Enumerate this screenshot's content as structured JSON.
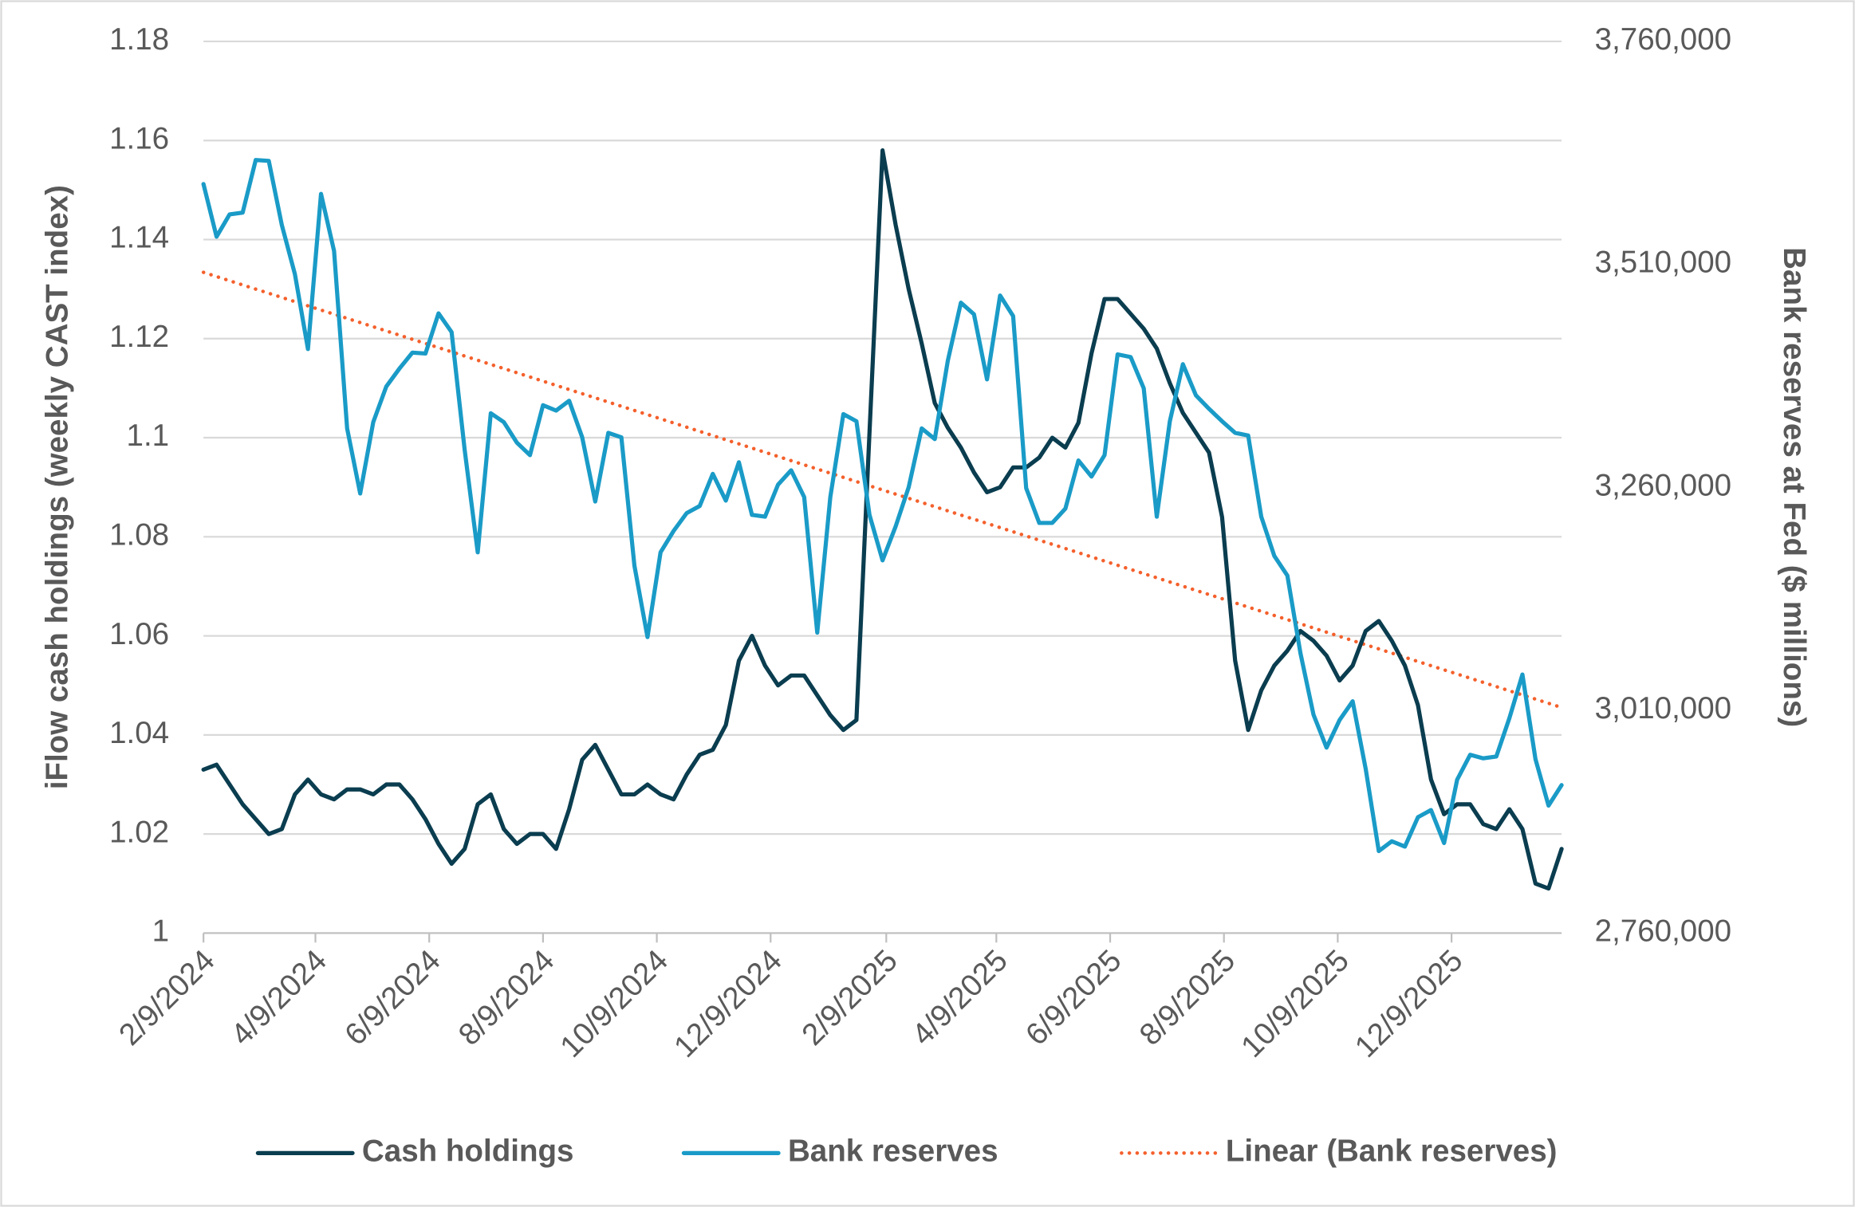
{
  "chart_data": {
    "type": "line",
    "y_label": "iFlow cash holdings (weekly CAST index)",
    "y2_label": "Bank reserves at Fed ($ millions)",
    "x": [
      "2024-02-09",
      "2024-02-16",
      "2024-02-23",
      "2024-03-01",
      "2024-03-08",
      "2024-03-15",
      "2024-03-22",
      "2024-03-29",
      "2024-04-05",
      "2024-04-12",
      "2024-04-19",
      "2024-04-26",
      "2024-05-03",
      "2024-05-10",
      "2024-05-17",
      "2024-05-24",
      "2024-05-31",
      "2024-06-07",
      "2024-06-14",
      "2024-06-21",
      "2024-06-28",
      "2024-07-05",
      "2024-07-12",
      "2024-07-19",
      "2024-07-26",
      "2024-08-02",
      "2024-08-09",
      "2024-08-16",
      "2024-08-23",
      "2024-08-30",
      "2024-09-06",
      "2024-09-13",
      "2024-09-20",
      "2024-09-27",
      "2024-10-04",
      "2024-10-11",
      "2024-10-18",
      "2024-10-25",
      "2024-11-01",
      "2024-11-08",
      "2024-11-15",
      "2024-11-22",
      "2024-11-29",
      "2024-12-06",
      "2024-12-13",
      "2024-12-20",
      "2024-12-27",
      "2025-01-03",
      "2025-01-10",
      "2025-01-17",
      "2025-01-24",
      "2025-01-31",
      "2025-02-07",
      "2025-02-14",
      "2025-02-21",
      "2025-02-28",
      "2025-03-07",
      "2025-03-14",
      "2025-03-21",
      "2025-03-28",
      "2025-04-04",
      "2025-04-11",
      "2025-04-18",
      "2025-04-25",
      "2025-05-02",
      "2025-05-09",
      "2025-05-16",
      "2025-05-23",
      "2025-05-30",
      "2025-06-06",
      "2025-06-13",
      "2025-06-20",
      "2025-06-27",
      "2025-07-04",
      "2025-07-11",
      "2025-07-18",
      "2025-07-25",
      "2025-08-01",
      "2025-08-08",
      "2025-08-15",
      "2025-08-22",
      "2025-08-29",
      "2025-09-05",
      "2025-09-12",
      "2025-09-19",
      "2025-09-26",
      "2025-10-03",
      "2025-10-10",
      "2025-10-17",
      "2025-10-24",
      "2025-10-31",
      "2025-11-07",
      "2025-11-14",
      "2025-11-21",
      "2025-11-28",
      "2025-12-05",
      "2025-12-12",
      "2025-12-19",
      "2025-12-26",
      "2026-01-02",
      "2026-01-09",
      "2026-01-16",
      "2026-01-23",
      "2026-01-30",
      "2026-02-06"
    ],
    "xlim": [
      "2024-02-09",
      "2026-02-06"
    ],
    "xticks": [
      {
        "value": "2024-02-09",
        "label": "2/9/2024"
      },
      {
        "value": "2024-04-09",
        "label": "4/9/2024"
      },
      {
        "value": "2024-06-09",
        "label": "6/9/2024"
      },
      {
        "value": "2024-08-09",
        "label": "8/9/2024"
      },
      {
        "value": "2024-10-09",
        "label": "10/9/2024"
      },
      {
        "value": "2024-12-09",
        "label": "12/9/2024"
      },
      {
        "value": "2025-02-09",
        "label": "2/9/2025"
      },
      {
        "value": "2025-04-09",
        "label": "4/9/2025"
      },
      {
        "value": "2025-06-09",
        "label": "6/9/2025"
      },
      {
        "value": "2025-08-09",
        "label": "8/9/2025"
      },
      {
        "value": "2025-10-09",
        "label": "10/9/2025"
      },
      {
        "value": "2025-12-09",
        "label": "12/9/2025"
      }
    ],
    "ylim": [
      1,
      1.18
    ],
    "yticks": [
      1,
      1.02,
      1.04,
      1.06,
      1.08,
      1.1,
      1.12,
      1.14,
      1.16,
      1.18
    ],
    "y2lim": [
      2760000,
      3760000
    ],
    "y2ticks": [
      {
        "value": 2760000,
        "label": "2,760,000"
      },
      {
        "value": 3010000,
        "label": "3,010,000"
      },
      {
        "value": 3260000,
        "label": "3,260,000"
      },
      {
        "value": 3510000,
        "label": "3,510,000"
      },
      {
        "value": 3760000,
        "label": "3,760,000"
      }
    ],
    "grid": true,
    "legend": "bottom",
    "series": [
      {
        "name": "Cash holdings",
        "color": "#0a3d4f",
        "axis": "y",
        "style": "solid",
        "values": [
          1.033,
          1.034,
          1.03,
          1.026,
          1.023,
          1.02,
          1.021,
          1.028,
          1.031,
          1.028,
          1.027,
          1.029,
          1.029,
          1.028,
          1.03,
          1.03,
          1.027,
          1.023,
          1.018,
          1.014,
          1.017,
          1.026,
          1.028,
          1.021,
          1.018,
          1.02,
          1.02,
          1.017,
          1.025,
          1.035,
          1.038,
          1.033,
          1.028,
          1.028,
          1.03,
          1.028,
          1.027,
          1.032,
          1.036,
          1.037,
          1.042,
          1.055,
          1.06,
          1.054,
          1.05,
          1.052,
          1.052,
          1.048,
          1.044,
          1.041,
          1.043,
          1.101,
          1.158,
          1.143,
          1.13,
          1.119,
          1.107,
          1.102,
          1.098,
          1.093,
          1.089,
          1.09,
          1.094,
          1.094,
          1.096,
          1.1,
          1.098,
          1.103,
          1.117,
          1.128,
          1.128,
          1.125,
          1.122,
          1.118,
          1.111,
          1.105,
          1.101,
          1.097,
          1.084,
          1.055,
          1.041,
          1.049,
          1.054,
          1.057,
          1.061,
          1.059,
          1.056,
          1.051,
          1.054,
          1.061,
          1.063,
          1.059,
          1.054,
          1.046,
          1.031,
          1.024,
          1.026,
          1.026,
          1.022,
          1.021,
          1.025,
          1.021,
          1.01,
          1.009,
          1.017
        ]
      },
      {
        "name": "Bank reserves",
        "color": "#1a9bc7",
        "axis": "y2",
        "style": "solid",
        "values": [
          3600000,
          3541000,
          3566000,
          3568000,
          3627000,
          3626000,
          3554000,
          3499000,
          3415000,
          3589000,
          3525000,
          3326000,
          3253000,
          3333000,
          3373000,
          3393000,
          3411000,
          3410000,
          3455000,
          3434000,
          3302000,
          3187000,
          3343000,
          3333000,
          3310000,
          3296000,
          3352000,
          3346000,
          3357000,
          3316000,
          3244000,
          3321000,
          3316000,
          3172000,
          3092000,
          3187000,
          3211000,
          3231000,
          3239000,
          3275000,
          3245000,
          3288000,
          3229000,
          3227000,
          3263000,
          3279000,
          3249000,
          3097000,
          3249000,
          3342000,
          3334000,
          3229000,
          3178000,
          3216000,
          3260000,
          3326000,
          3314000,
          3402000,
          3467000,
          3454000,
          3381000,
          3475000,
          3452000,
          3259000,
          3220000,
          3220000,
          3236000,
          3290000,
          3272000,
          3296000,
          3409000,
          3406000,
          3371000,
          3227000,
          3334000,
          3398000,
          3363000,
          3348000,
          3334000,
          3321000,
          3318000,
          3227000,
          3183000,
          3161000,
          3074000,
          3005000,
          2968000,
          2999000,
          3020000,
          2944000,
          2852000,
          2863000,
          2857000,
          2890000,
          2898000,
          2861000,
          2932000,
          2960000,
          2956000,
          2958000,
          3001000,
          3050000,
          2955000,
          2903000,
          2926000
        ]
      },
      {
        "name": "Linear (Bank reserves)",
        "color": "#f4602c",
        "axis": "y2",
        "style": "dotted",
        "x": [
          "2024-02-09",
          "2026-02-06"
        ],
        "values": [
          3501000,
          3013000
        ]
      }
    ]
  }
}
